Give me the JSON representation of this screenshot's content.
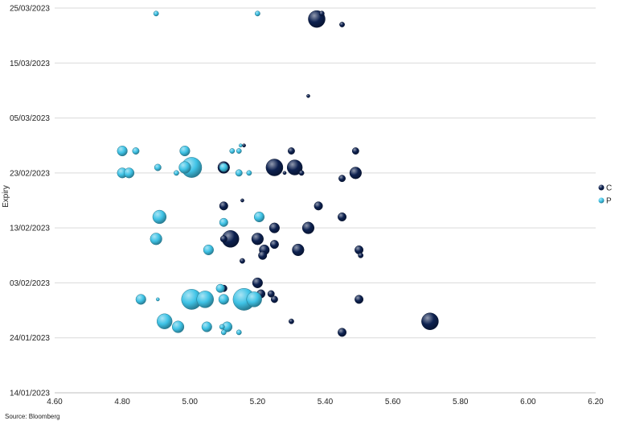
{
  "chart_data": {
    "type": "scatter",
    "subtype": "bubble",
    "title": "",
    "xlabel": "",
    "ylabel": "Expiry",
    "xlim": [
      4.6,
      6.2
    ],
    "x_ticks": [
      "4.60",
      "4.80",
      "5.00",
      "5.20",
      "5.40",
      "5.60",
      "5.80",
      "6.00",
      "6.20"
    ],
    "ylim": [
      "2023-01-14",
      "2023-03-25"
    ],
    "y_ticks": [
      "14/01/2023",
      "24/01/2023",
      "03/02/2023",
      "13/02/2023",
      "23/02/2023",
      "05/03/2023",
      "15/03/2023",
      "25/03/2023"
    ],
    "grid": "horizontal",
    "legend": "right",
    "series": [
      {
        "name": "C",
        "color": "#0d2150",
        "points": [
          {
            "x": 5.375,
            "y": "2023-03-23",
            "size": 10
          },
          {
            "x": 5.39,
            "y": "2023-03-24",
            "size": 3
          },
          {
            "x": 5.45,
            "y": "2023-03-22",
            "size": 3
          },
          {
            "x": 5.35,
            "y": "2023-03-09",
            "size": 2
          },
          {
            "x": 5.16,
            "y": "2023-02-28",
            "size": 2
          },
          {
            "x": 5.3,
            "y": "2023-02-27",
            "size": 4
          },
          {
            "x": 5.49,
            "y": "2023-02-27",
            "size": 4
          },
          {
            "x": 5.1,
            "y": "2023-02-24",
            "size": 7
          },
          {
            "x": 5.25,
            "y": "2023-02-24",
            "size": 10
          },
          {
            "x": 5.31,
            "y": "2023-02-24",
            "size": 9
          },
          {
            "x": 5.33,
            "y": "2023-02-23",
            "size": 3
          },
          {
            "x": 5.28,
            "y": "2023-02-23",
            "size": 2
          },
          {
            "x": 5.49,
            "y": "2023-02-23",
            "size": 7
          },
          {
            "x": 5.45,
            "y": "2023-02-22",
            "size": 4
          },
          {
            "x": 5.155,
            "y": "2023-02-18",
            "size": 2
          },
          {
            "x": 5.1,
            "y": "2023-02-17",
            "size": 5
          },
          {
            "x": 5.38,
            "y": "2023-02-17",
            "size": 5
          },
          {
            "x": 5.45,
            "y": "2023-02-15",
            "size": 5
          },
          {
            "x": 5.25,
            "y": "2023-02-13",
            "size": 6
          },
          {
            "x": 5.35,
            "y": "2023-02-13",
            "size": 7
          },
          {
            "x": 5.12,
            "y": "2023-02-11",
            "size": 10
          },
          {
            "x": 5.1,
            "y": "2023-02-11",
            "size": 4
          },
          {
            "x": 5.2,
            "y": "2023-02-11",
            "size": 7
          },
          {
            "x": 5.25,
            "y": "2023-02-10",
            "size": 5
          },
          {
            "x": 5.22,
            "y": "2023-02-09",
            "size": 6
          },
          {
            "x": 5.32,
            "y": "2023-02-09",
            "size": 7
          },
          {
            "x": 5.215,
            "y": "2023-02-08",
            "size": 5
          },
          {
            "x": 5.5,
            "y": "2023-02-09",
            "size": 5
          },
          {
            "x": 5.505,
            "y": "2023-02-08",
            "size": 3
          },
          {
            "x": 5.155,
            "y": "2023-02-07",
            "size": 3
          },
          {
            "x": 5.2,
            "y": "2023-02-03",
            "size": 6
          },
          {
            "x": 5.1,
            "y": "2023-02-02",
            "size": 4
          },
          {
            "x": 5.21,
            "y": "2023-02-01",
            "size": 5
          },
          {
            "x": 5.24,
            "y": "2023-02-01",
            "size": 4
          },
          {
            "x": 5.25,
            "y": "2023-01-31",
            "size": 4
          },
          {
            "x": 5.5,
            "y": "2023-01-31",
            "size": 5
          },
          {
            "x": 5.3,
            "y": "2023-01-27",
            "size": 3
          },
          {
            "x": 5.71,
            "y": "2023-01-27",
            "size": 10
          },
          {
            "x": 5.45,
            "y": "2023-01-25",
            "size": 5
          }
        ]
      },
      {
        "name": "P",
        "color": "#3fc3e6",
        "points": [
          {
            "x": 4.9,
            "y": "2023-03-24",
            "size": 3
          },
          {
            "x": 5.2,
            "y": "2023-03-24",
            "size": 3
          },
          {
            "x": 4.8,
            "y": "2023-02-27",
            "size": 6
          },
          {
            "x": 4.84,
            "y": "2023-02-27",
            "size": 4
          },
          {
            "x": 4.985,
            "y": "2023-02-27",
            "size": 6
          },
          {
            "x": 5.125,
            "y": "2023-02-27",
            "size": 3
          },
          {
            "x": 5.145,
            "y": "2023-02-27",
            "size": 3
          },
          {
            "x": 5.15,
            "y": "2023-02-28",
            "size": 2
          },
          {
            "x": 4.8,
            "y": "2023-02-23",
            "size": 6
          },
          {
            "x": 4.82,
            "y": "2023-02-23",
            "size": 6
          },
          {
            "x": 4.905,
            "y": "2023-02-24",
            "size": 4
          },
          {
            "x": 4.985,
            "y": "2023-02-24",
            "size": 7
          },
          {
            "x": 5.005,
            "y": "2023-02-24",
            "size": 12
          },
          {
            "x": 4.96,
            "y": "2023-02-23",
            "size": 3
          },
          {
            "x": 5.1,
            "y": "2023-02-24",
            "size": 5
          },
          {
            "x": 5.145,
            "y": "2023-02-23",
            "size": 4
          },
          {
            "x": 5.175,
            "y": "2023-02-23",
            "size": 3
          },
          {
            "x": 4.91,
            "y": "2023-02-15",
            "size": 8
          },
          {
            "x": 5.205,
            "y": "2023-02-15",
            "size": 6
          },
          {
            "x": 5.1,
            "y": "2023-02-14",
            "size": 5
          },
          {
            "x": 4.9,
            "y": "2023-02-11",
            "size": 7
          },
          {
            "x": 5.055,
            "y": "2023-02-09",
            "size": 6
          },
          {
            "x": 4.855,
            "y": "2023-01-31",
            "size": 6
          },
          {
            "x": 4.905,
            "y": "2023-01-31",
            "size": 2
          },
          {
            "x": 5.005,
            "y": "2023-01-31",
            "size": 12
          },
          {
            "x": 5.045,
            "y": "2023-01-31",
            "size": 10
          },
          {
            "x": 5.09,
            "y": "2023-02-02",
            "size": 5
          },
          {
            "x": 5.1,
            "y": "2023-01-31",
            "size": 6
          },
          {
            "x": 5.16,
            "y": "2023-01-31",
            "size": 13
          },
          {
            "x": 5.19,
            "y": "2023-01-31",
            "size": 9
          },
          {
            "x": 4.925,
            "y": "2023-01-27",
            "size": 9
          },
          {
            "x": 4.965,
            "y": "2023-01-26",
            "size": 7
          },
          {
            "x": 5.05,
            "y": "2023-01-26",
            "size": 6
          },
          {
            "x": 5.095,
            "y": "2023-01-26",
            "size": 3
          },
          {
            "x": 5.11,
            "y": "2023-01-26",
            "size": 6
          },
          {
            "x": 5.1,
            "y": "2023-01-25",
            "size": 3
          },
          {
            "x": 5.145,
            "y": "2023-01-25",
            "size": 3
          }
        ]
      }
    ]
  },
  "source": "Source: Bloomberg"
}
